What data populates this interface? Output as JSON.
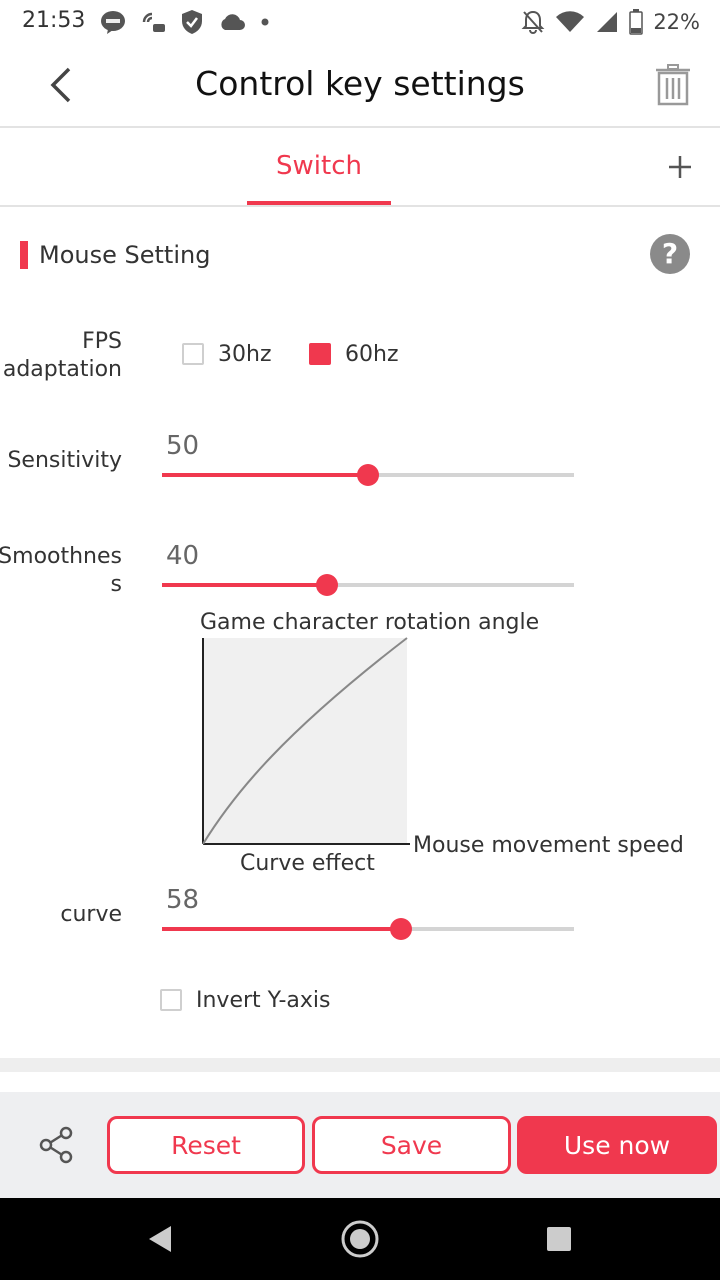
{
  "status_bar": {
    "time": "21:53",
    "battery_percent": "22%",
    "icons_left": [
      "line-app-icon",
      "nfc-on-icon",
      "shield-check-icon",
      "cloud-icon",
      "dot-icon"
    ],
    "icons_right": [
      "notifications-off-icon",
      "wifi-icon",
      "signal-icon",
      "battery-icon"
    ]
  },
  "app_bar": {
    "title": "Control key settings",
    "back_icon": "chevron-left-icon",
    "delete_icon": "trash-icon"
  },
  "tabs": {
    "items": [
      {
        "label": "Switch",
        "active": true
      }
    ],
    "add_icon": "plus-icon"
  },
  "section": {
    "title": "Mouse Setting",
    "help_label": "?"
  },
  "fps": {
    "label_line1": "FPS",
    "label_line2": "adaptation",
    "options": [
      {
        "label": "30hz",
        "checked": false
      },
      {
        "label": "60hz",
        "checked": true
      }
    ]
  },
  "sensitivity": {
    "label": "Sensitivity",
    "value": "50",
    "fraction": 0.5
  },
  "smoothness": {
    "label_line1": "Smoothnes",
    "label_line2": "s",
    "value": "40",
    "fraction": 0.4
  },
  "graph": {
    "title": "Game character rotation angle",
    "xlabel": "Mouse movement speed",
    "caption": "Curve effect"
  },
  "curve": {
    "label": "curve",
    "value": "58",
    "fraction": 0.58
  },
  "invert_y": {
    "label": "Invert Y-axis",
    "checked": false
  },
  "actions": {
    "reset_label": "Reset",
    "save_label": "Save",
    "use_now_label": "Use now",
    "share_icon": "share-icon"
  },
  "colors": {
    "accent": "#f0384e",
    "track": "#d4d4d4",
    "graph_bg": "#f0f0f0"
  },
  "nav_bar": {
    "icons": [
      "back-triangle-icon",
      "home-circle-icon",
      "recents-square-icon"
    ]
  }
}
